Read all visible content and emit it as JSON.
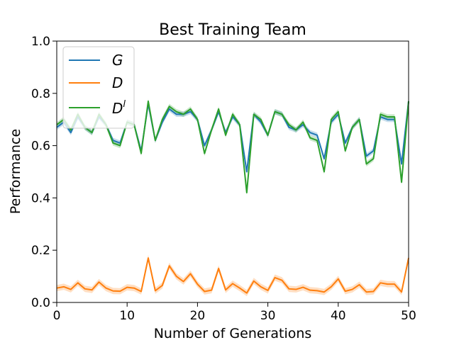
{
  "chart_data": {
    "type": "line",
    "title": "Best Training Team",
    "xlabel": "Number of Generations",
    "ylabel": "Performance",
    "xlim": [
      0,
      50
    ],
    "ylim": [
      0.0,
      1.0
    ],
    "xticks": [
      "0",
      "10",
      "20",
      "30",
      "40",
      "50"
    ],
    "yticks": [
      "0.0",
      "0.2",
      "0.4",
      "0.6",
      "0.8",
      "1.0"
    ],
    "grid": false,
    "legend_position": "top-left",
    "x": [
      0,
      1,
      2,
      3,
      4,
      5,
      6,
      7,
      8,
      9,
      10,
      11,
      12,
      13,
      14,
      15,
      16,
      17,
      18,
      19,
      20,
      21,
      22,
      23,
      24,
      25,
      26,
      27,
      28,
      29,
      30,
      31,
      32,
      33,
      34,
      35,
      36,
      37,
      38,
      39,
      40,
      41,
      42,
      43,
      44,
      45,
      46,
      47,
      48,
      49,
      50
    ],
    "series": [
      {
        "name": "G",
        "color": "#1f77b4",
        "values": [
          0.67,
          0.69,
          0.65,
          0.71,
          0.67,
          0.65,
          0.71,
          0.68,
          0.62,
          0.61,
          0.69,
          0.68,
          0.58,
          0.76,
          0.62,
          0.69,
          0.74,
          0.72,
          0.72,
          0.73,
          0.7,
          0.6,
          0.66,
          0.73,
          0.65,
          0.71,
          0.68,
          0.5,
          0.72,
          0.69,
          0.64,
          0.73,
          0.72,
          0.67,
          0.66,
          0.68,
          0.65,
          0.64,
          0.55,
          0.69,
          0.72,
          0.61,
          0.67,
          0.7,
          0.56,
          0.58,
          0.71,
          0.7,
          0.7,
          0.53,
          0.77
        ]
      },
      {
        "name": "D",
        "color": "#ff7f0e",
        "values": [
          0.055,
          0.06,
          0.05,
          0.075,
          0.052,
          0.048,
          0.078,
          0.055,
          0.044,
          0.043,
          0.058,
          0.055,
          0.042,
          0.17,
          0.045,
          0.065,
          0.14,
          0.1,
          0.08,
          0.11,
          0.07,
          0.042,
          0.047,
          0.13,
          0.048,
          0.072,
          0.055,
          0.036,
          0.082,
          0.06,
          0.046,
          0.095,
          0.085,
          0.052,
          0.05,
          0.058,
          0.047,
          0.045,
          0.04,
          0.06,
          0.09,
          0.043,
          0.05,
          0.068,
          0.04,
          0.042,
          0.075,
          0.07,
          0.07,
          0.04,
          0.17
        ]
      },
      {
        "name": "D^l",
        "color": "#2ca02c",
        "values": [
          0.68,
          0.7,
          0.66,
          0.72,
          0.67,
          0.65,
          0.72,
          0.68,
          0.61,
          0.6,
          0.69,
          0.68,
          0.57,
          0.77,
          0.62,
          0.7,
          0.75,
          0.73,
          0.72,
          0.74,
          0.7,
          0.57,
          0.66,
          0.74,
          0.64,
          0.72,
          0.68,
          0.42,
          0.72,
          0.7,
          0.64,
          0.73,
          0.72,
          0.68,
          0.66,
          0.69,
          0.63,
          0.62,
          0.5,
          0.7,
          0.73,
          0.58,
          0.67,
          0.7,
          0.53,
          0.55,
          0.72,
          0.71,
          0.71,
          0.46,
          0.77
        ]
      }
    ]
  },
  "legend": {
    "g_label": "G",
    "d_label": "D",
    "dl_base": "D",
    "dl_sup": "l"
  }
}
